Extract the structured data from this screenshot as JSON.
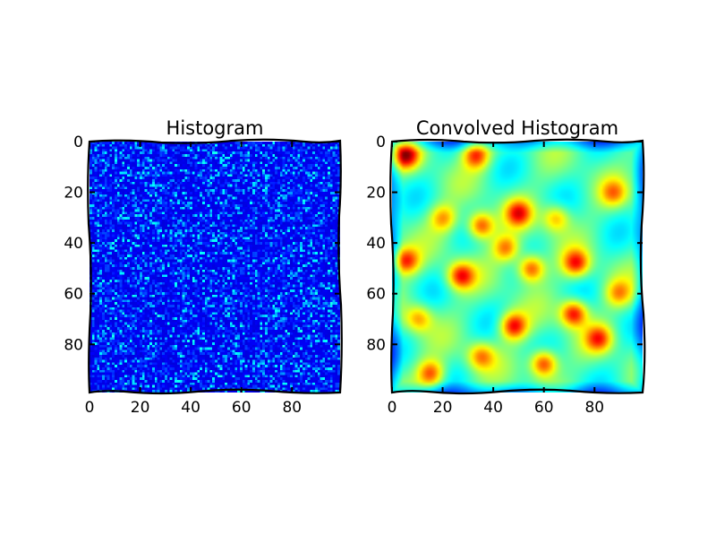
{
  "chart_data": [
    {
      "type": "heatmap",
      "title": "Histogram",
      "colormap": "jet",
      "grid_size": [
        100,
        100
      ],
      "xlim": [
        0,
        99
      ],
      "ylim": [
        99,
        0
      ],
      "xticks": [
        0,
        20,
        40,
        60,
        80
      ],
      "yticks": [
        0,
        20,
        40,
        60,
        80
      ],
      "xtick_labels": [
        "0",
        "20",
        "40",
        "60",
        "80"
      ],
      "ytick_labels": [
        "0",
        "20",
        "40",
        "60",
        "80"
      ],
      "value_description": "random per-cell counts, mostly low (deep blue) with scattered higher cells (cyan/light blue)",
      "value_range": [
        0,
        1
      ]
    },
    {
      "type": "heatmap",
      "title": "Convolved Histogram",
      "colormap": "jet",
      "grid_size": [
        100,
        100
      ],
      "xlim": [
        0,
        99
      ],
      "ylim": [
        99,
        0
      ],
      "xticks": [
        0,
        20,
        40,
        60,
        80
      ],
      "yticks": [
        0,
        20,
        40,
        60,
        80
      ],
      "xtick_labels": [
        "0",
        "20",
        "40",
        "60",
        "80"
      ],
      "ytick_labels": [
        "0",
        "20",
        "40",
        "60",
        "80"
      ],
      "value_description": "smoothed histogram: green/yellow background with red blobs; notable peaks near (5,5), (33,5), (50,28), (35,33), (5,47), (27,53), (55,50), (73,48), (72,68), (48,73), (60,88), (15,92)",
      "value_range": [
        0,
        1
      ]
    }
  ]
}
